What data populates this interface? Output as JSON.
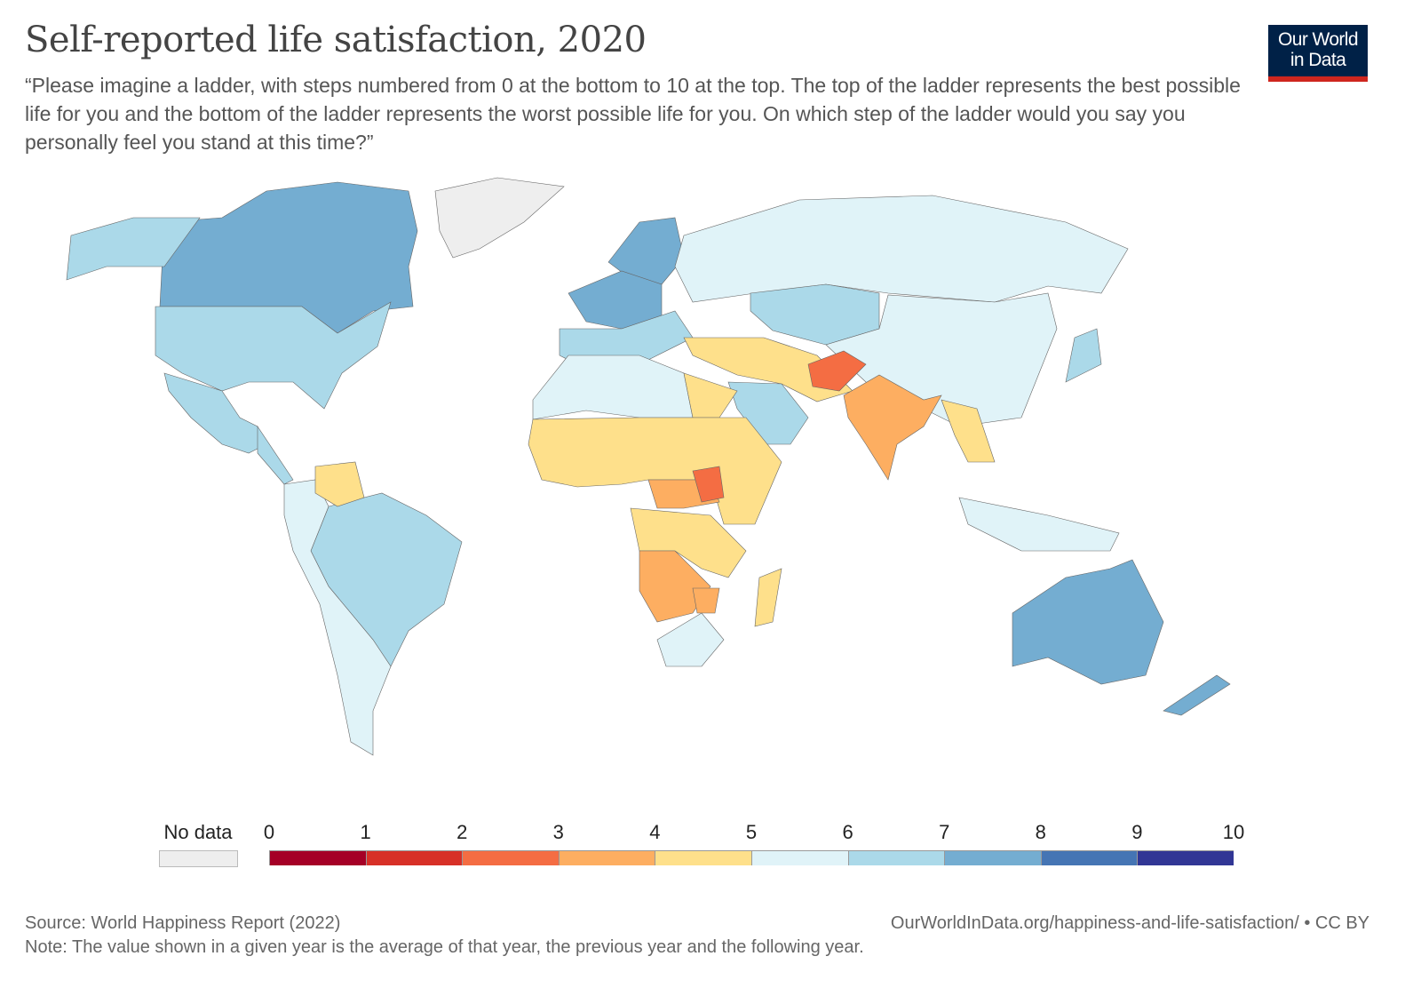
{
  "title": "Self-reported life satisfaction, 2020",
  "subtitle": "“Please imagine a ladder, with steps numbered from 0 at the bottom to 10 at the top. The top of the ladder represents the best possible life for you and the bottom of the ladder represents the worst possible life for you. On which step of the ladder would you say you personally feel you stand at this time?”",
  "logo": {
    "line1": "Our World",
    "line2": "in Data"
  },
  "footer": {
    "source": "Source: World Happiness Report (2022)",
    "url": "OurWorldInData.org/happiness-and-life-satisfaction/ • CC BY",
    "note": "Note: The value shown in a given year is the average of that year, the previous year and the following year."
  },
  "chart_data": {
    "type": "choropleth",
    "year": 2020,
    "legend": {
      "no_data_label": "No data",
      "no_data_color": "#eeeeee",
      "ticks": [
        "0",
        "1",
        "2",
        "3",
        "4",
        "5",
        "6",
        "7",
        "8",
        "9",
        "10"
      ],
      "colors": [
        "#a50026",
        "#d73027",
        "#f46d43",
        "#fdae61",
        "#fee08b",
        "#e0f3f8",
        "#abd9e9",
        "#74add1",
        "#4575b4",
        "#313695"
      ]
    },
    "regions": [
      {
        "name": "Canada",
        "value": 7.0
      },
      {
        "name": "Alaska (United States)",
        "value": 6.9
      },
      {
        "name": "United States",
        "value": 6.9
      },
      {
        "name": "Mexico",
        "value": 6.3
      },
      {
        "name": "Central America",
        "value": 6.2
      },
      {
        "name": "Greenland",
        "value": null
      },
      {
        "name": "Brazil",
        "value": 6.3
      },
      {
        "name": "Andean & Southern Cone",
        "value": 5.8
      },
      {
        "name": "Venezuela",
        "value": 4.9
      },
      {
        "name": "Nordic countries",
        "value": 7.6
      },
      {
        "name": "Western Europe",
        "value": 7.2
      },
      {
        "name": "Southern & Eastern Europe",
        "value": 6.4
      },
      {
        "name": "Russia",
        "value": 5.5
      },
      {
        "name": "Kazakhstan & Central Asia",
        "value": 6.2
      },
      {
        "name": "China",
        "value": 5.6
      },
      {
        "name": "Middle East & Iran",
        "value": 4.9
      },
      {
        "name": "Saudi Arabia",
        "value": 6.5
      },
      {
        "name": "Afghanistan",
        "value": 2.4
      },
      {
        "name": "India",
        "value": 3.8
      },
      {
        "name": "Southeast Asia mainland",
        "value": 4.5
      },
      {
        "name": "Japan",
        "value": 6.0
      },
      {
        "name": "Indonesia & Philippines",
        "value": 5.4
      },
      {
        "name": "Australia",
        "value": 7.2
      },
      {
        "name": "New Zealand",
        "value": 7.2
      },
      {
        "name": "North Africa",
        "value": 5.2
      },
      {
        "name": "Egypt",
        "value": 4.3
      },
      {
        "name": "West Africa & Sahel",
        "value": 4.8
      },
      {
        "name": "Central African belt",
        "value": 3.5
      },
      {
        "name": "South Sudan",
        "value": 2.9
      },
      {
        "name": "East & Central Africa",
        "value": 4.2
      },
      {
        "name": "Angola, Zambia & Botswana",
        "value": 3.6
      },
      {
        "name": "Zimbabwe",
        "value": 3.0
      },
      {
        "name": "South Africa",
        "value": 5.2
      },
      {
        "name": "Madagascar",
        "value": 4.3
      }
    ]
  }
}
